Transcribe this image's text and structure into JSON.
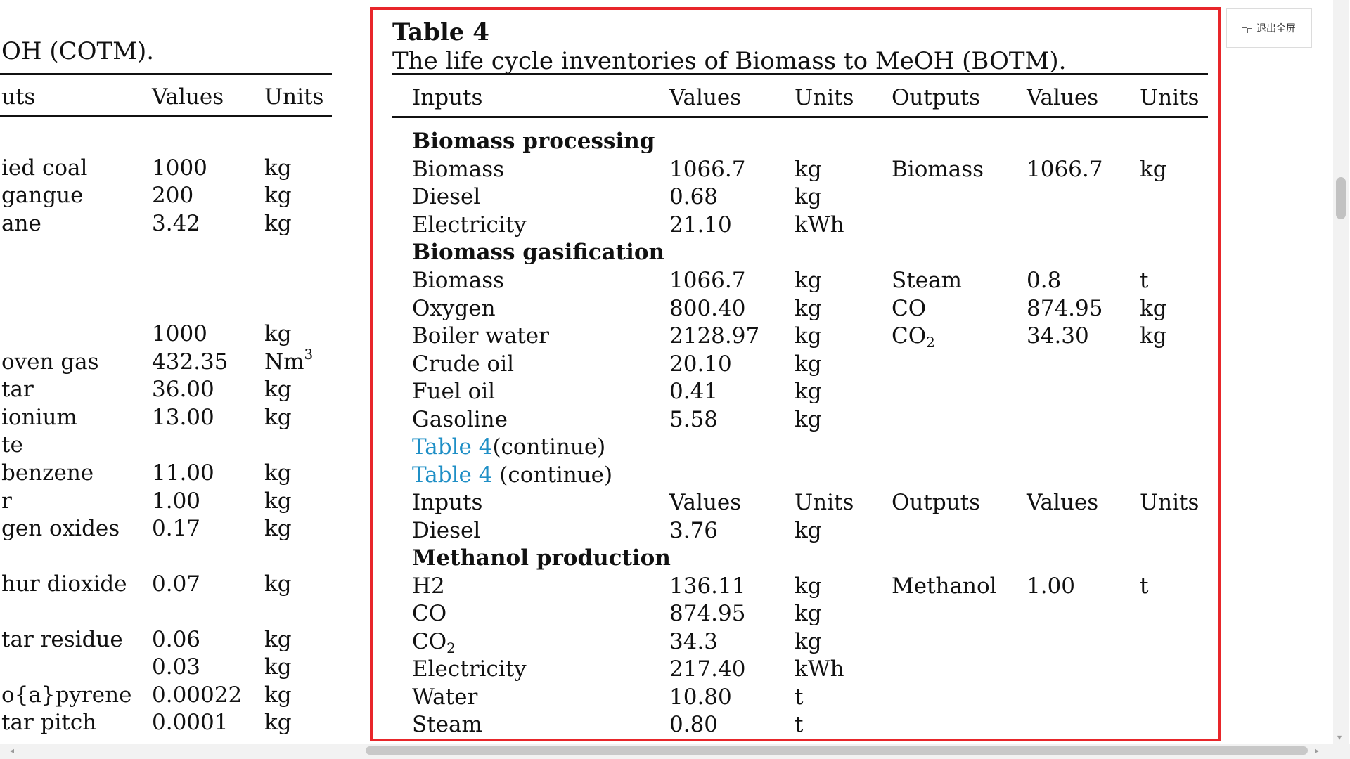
{
  "left": {
    "caption": "OH (COTM).",
    "headers": [
      "uts",
      "Values",
      "Units"
    ],
    "rows": [
      {
        "item": "ied coal",
        "value": "1000",
        "unit": "kg"
      },
      {
        "item": "gangue",
        "value": "200",
        "unit": "kg"
      },
      {
        "item": "ane",
        "value": "3.42",
        "unit": "kg"
      },
      {
        "item": "",
        "value": "1000",
        "unit": "kg"
      },
      {
        "item": " oven gas",
        "value": "432.35",
        "unit": "Nm",
        "unit_sup": "3"
      },
      {
        "item": "tar",
        "value": "36.00",
        "unit": "kg"
      },
      {
        "item": "ionium",
        "value": "13.00",
        "unit": "kg"
      },
      {
        "item": "te",
        "value": "",
        "unit": ""
      },
      {
        "item": "benzene",
        "value": "11.00",
        "unit": "kg"
      },
      {
        "item": "r",
        "value": "1.00",
        "unit": "kg"
      },
      {
        "item": "gen oxides",
        "value": "0.17",
        "unit": "kg"
      },
      {
        "item": "hur dioxide",
        "value": "0.07",
        "unit": "kg"
      },
      {
        "item": " tar residue",
        "value": "0.06",
        "unit": "kg"
      },
      {
        "item": "",
        "value": "0.03",
        "unit": "kg"
      },
      {
        "item": "o{a}pyrene",
        "value": "0.00022",
        "unit": "kg"
      },
      {
        "item": "tar pitch",
        "value": "0.0001",
        "unit": "kg"
      }
    ]
  },
  "table": {
    "label": "Table 4",
    "title": "The life cycle inventories of Biomass to MeOH (BOTM).",
    "headers": [
      "Inputs",
      "Values",
      "Units",
      "Outputs",
      "Values",
      "Units"
    ],
    "sections": {
      "biomass_processing": "Biomass processing",
      "biomass_gasification": "Biomass gasification",
      "methanol_production": "Methanol production"
    },
    "rows": {
      "bp1": {
        "in": "Biomass",
        "v": "1066.7",
        "u": "kg",
        "out": "Biomass",
        "ov": "1066.7",
        "ou": "kg"
      },
      "bp2": {
        "in": "Diesel",
        "v": "0.68",
        "u": "kg"
      },
      "bp3": {
        "in": "Electricity",
        "v": "21.10",
        "u": "kWh"
      },
      "bg1": {
        "in": "Biomass",
        "v": "1066.7",
        "u": "kg",
        "out": "Steam",
        "ov": "0.8",
        "ou": "t"
      },
      "bg2": {
        "in": "Oxygen",
        "v": "800.40",
        "u": "kg",
        "out": "CO",
        "ov": "874.95",
        "ou": "kg"
      },
      "bg3": {
        "in": "Boiler water",
        "v": "2128.97",
        "u": "kg",
        "out_main": "CO",
        "out_sub": "2",
        "ov": "34.30",
        "ou": "kg"
      },
      "bg4": {
        "in": "Crude oil",
        "v": "20.10",
        "u": "kg"
      },
      "bg5": {
        "in": "Fuel oil",
        "v": "0.41",
        "u": "kg"
      },
      "bg6": {
        "in": "Gasoline",
        "v": "5.58",
        "u": "kg"
      },
      "cont1": {
        "link": "Table 4",
        "text": "(continue)"
      },
      "cont2": {
        "link": "Table 4",
        "text": " (continue)"
      },
      "d1": {
        "in": "Diesel",
        "v": "3.76",
        "u": "kg"
      },
      "mp1": {
        "in": "H2",
        "v": "136.11",
        "u": "kg",
        "out": "Methanol",
        "ov": "1.00",
        "ou": "t"
      },
      "mp2": {
        "in": "CO",
        "v": "874.95",
        "u": "kg"
      },
      "mp3": {
        "in_main": "CO",
        "in_sub": "2",
        "v": "34.3",
        "u": "kg"
      },
      "mp4": {
        "in": "Electricity",
        "v": "217.40",
        "u": "kWh"
      },
      "mp5": {
        "in": "Water",
        "v": "10.80",
        "u": "t"
      },
      "mp6": {
        "in": "Steam",
        "v": "0.80",
        "u": "t"
      }
    }
  },
  "ui": {
    "exit_fullscreen": "退出全屏",
    "icons": {
      "exit": "exit-fullscreen-icon",
      "left": "left-arrow-icon",
      "right": "right-arrow-icon",
      "down": "down-arrow-icon"
    }
  }
}
